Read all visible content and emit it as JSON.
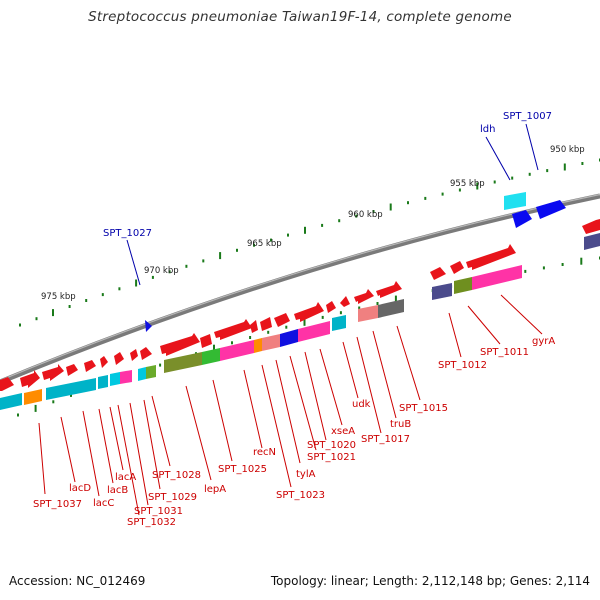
{
  "title": "Streptococcus pneumoniae Taiwan19F-14, complete genome",
  "accession": "Accession: NC_012469",
  "summary": "Topology: linear; Length: 2,112,148 bp; Genes: 2,114",
  "colors": {
    "backbone": "#7f7f7f",
    "tick": "#1a7a1a",
    "label_red": "#cc0000",
    "label_blue": "#0000aa",
    "cds": "#e8141b"
  },
  "ruler": [
    {
      "label": "950 kbp"
    },
    {
      "label": "955 kbp"
    },
    {
      "label": "960 kbp"
    },
    {
      "label": "965 kbp"
    },
    {
      "label": "970 kbp"
    },
    {
      "label": "975 kbp"
    }
  ],
  "gene_labels_top": [
    {
      "name": "SPT_1007"
    },
    {
      "name": "ldh"
    },
    {
      "name": "SPT_1027"
    }
  ],
  "gene_labels_bottom": [
    {
      "name": "gyrA"
    },
    {
      "name": "SPT_1011"
    },
    {
      "name": "SPT_1012"
    },
    {
      "name": "SPT_1015"
    },
    {
      "name": "truB"
    },
    {
      "name": "SPT_1017"
    },
    {
      "name": "udk"
    },
    {
      "name": "xseA"
    },
    {
      "name": "SPT_1020"
    },
    {
      "name": "SPT_1021"
    },
    {
      "name": "tylA"
    },
    {
      "name": "SPT_1023"
    },
    {
      "name": "recN"
    },
    {
      "name": "SPT_1025"
    },
    {
      "name": "lepA"
    },
    {
      "name": "SPT_1028"
    },
    {
      "name": "SPT_1029"
    },
    {
      "name": "SPT_1031"
    },
    {
      "name": "SPT_1032"
    },
    {
      "name": "lacA"
    },
    {
      "name": "lacB"
    },
    {
      "name": "lacC"
    },
    {
      "name": "lacD"
    },
    {
      "name": "SPT_1037"
    }
  ]
}
